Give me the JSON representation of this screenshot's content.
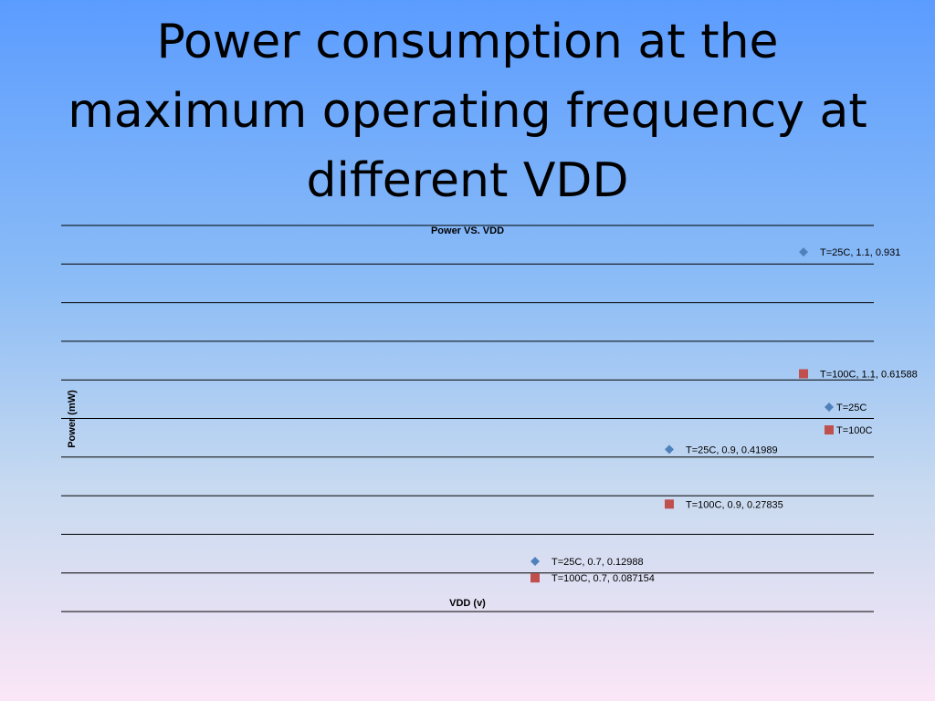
{
  "slide": {
    "title": "Power consumption at the maximum operating frequency at different VDD"
  },
  "chart_data": {
    "type": "scatter",
    "title": "Power VS. VDD",
    "xlabel": "VDD (v)",
    "ylabel": "Power (mW)",
    "ylim": [
      0,
      1.0
    ],
    "grid": true,
    "legend_position": "right",
    "series": [
      {
        "name": "T=25C",
        "color": "#4f81bd",
        "marker": "diamond",
        "points": [
          {
            "x": 0.7,
            "y": 0.12988,
            "label": "T=25C, 0.7, 0.12988"
          },
          {
            "x": 0.9,
            "y": 0.41989,
            "label": "T=25C, 0.9, 0.41989"
          },
          {
            "x": 1.1,
            "y": 0.931,
            "label": "T=25C, 1.1, 0.931"
          }
        ]
      },
      {
        "name": "T=100C",
        "color": "#c0504d",
        "marker": "square",
        "points": [
          {
            "x": 0.7,
            "y": 0.087154,
            "label": "T=100C, 0.7, 0.087154"
          },
          {
            "x": 0.9,
            "y": 0.27835,
            "label": "T=100C, 0.9, 0.27835"
          },
          {
            "x": 1.1,
            "y": 0.61588,
            "label": "T=100C, 1.1, 0.61588"
          }
        ]
      }
    ]
  }
}
